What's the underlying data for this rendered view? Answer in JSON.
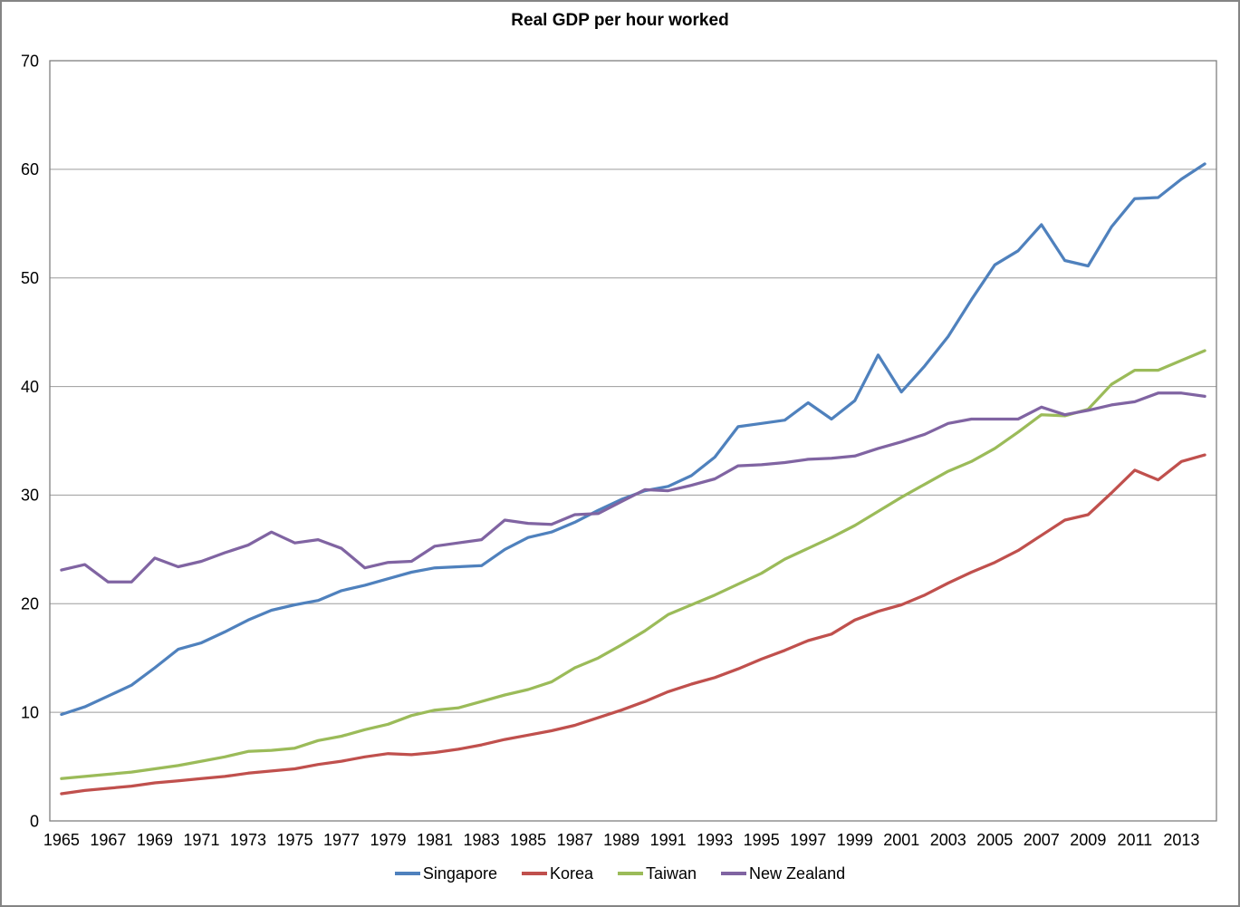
{
  "chart": {
    "title": "Real GDP per hour worked",
    "background_color": "#ffffff",
    "frame_border_color": "#848484",
    "plot_border_color": "#808080",
    "gridline_color": "#9c9c9c",
    "text_color": "#000000",
    "legend": [
      {
        "label": "Singapore",
        "color": "#4F81BD"
      },
      {
        "label": "Korea",
        "color": "#C0504D"
      },
      {
        "label": "Taiwan",
        "color": "#9BBB59"
      },
      {
        "label": "New Zealand",
        "color": "#8064A2"
      }
    ]
  },
  "chart_data": {
    "type": "line",
    "title": "Real GDP per hour worked",
    "xlabel": "",
    "ylabel": "",
    "grid": true,
    "legend_position": "bottom",
    "ylim": [
      0,
      70
    ],
    "y_ticks": [
      0,
      10,
      20,
      30,
      40,
      50,
      60,
      70
    ],
    "x": [
      1965,
      1966,
      1967,
      1968,
      1969,
      1970,
      1971,
      1972,
      1973,
      1974,
      1975,
      1976,
      1977,
      1978,
      1979,
      1980,
      1981,
      1982,
      1983,
      1984,
      1985,
      1986,
      1987,
      1988,
      1989,
      1990,
      1991,
      1992,
      1993,
      1994,
      1995,
      1996,
      1997,
      1998,
      1999,
      2000,
      2001,
      2002,
      2003,
      2004,
      2005,
      2006,
      2007,
      2008,
      2009,
      2010,
      2011,
      2012,
      2013,
      2014
    ],
    "x_tick_labels": [
      "1965",
      "1967",
      "1969",
      "1971",
      "1973",
      "1975",
      "1977",
      "1979",
      "1981",
      "1983",
      "1985",
      "1987",
      "1989",
      "1991",
      "1993",
      "1995",
      "1997",
      "1999",
      "2001",
      "2003",
      "2005",
      "2007",
      "2009",
      "2011",
      "2013"
    ],
    "series": [
      {
        "name": "Singapore",
        "color": "#4F81BD",
        "values": [
          9.8,
          10.5,
          11.5,
          12.5,
          14.1,
          15.8,
          16.4,
          17.4,
          18.5,
          19.4,
          19.9,
          20.3,
          21.2,
          21.7,
          22.3,
          22.9,
          23.3,
          23.4,
          23.5,
          25.0,
          26.1,
          26.6,
          27.5,
          28.6,
          29.6,
          30.4,
          30.8,
          31.8,
          33.5,
          36.3,
          36.6,
          36.9,
          38.5,
          37.0,
          38.7,
          42.9,
          39.5,
          41.9,
          44.6,
          48.0,
          51.2,
          52.5,
          54.9,
          51.6,
          51.1,
          54.7,
          57.3,
          57.4,
          59.1,
          60.5
        ]
      },
      {
        "name": "Korea",
        "color": "#C0504D",
        "values": [
          2.5,
          2.8,
          3.0,
          3.2,
          3.5,
          3.7,
          3.9,
          4.1,
          4.4,
          4.6,
          4.8,
          5.2,
          5.5,
          5.9,
          6.2,
          6.1,
          6.3,
          6.6,
          7.0,
          7.5,
          7.9,
          8.3,
          8.8,
          9.5,
          10.2,
          11.0,
          11.9,
          12.6,
          13.2,
          14.0,
          14.9,
          15.7,
          16.6,
          17.2,
          18.5,
          19.3,
          19.9,
          20.8,
          21.9,
          22.9,
          23.8,
          24.9,
          26.3,
          27.7,
          28.2,
          30.2,
          32.3,
          31.4,
          33.1,
          33.7
        ]
      },
      {
        "name": "Taiwan",
        "color": "#9BBB59",
        "values": [
          3.9,
          4.1,
          4.3,
          4.5,
          4.8,
          5.1,
          5.5,
          5.9,
          6.4,
          6.5,
          6.7,
          7.4,
          7.8,
          8.4,
          8.9,
          9.7,
          10.2,
          10.4,
          11.0,
          11.6,
          12.1,
          12.8,
          14.1,
          15.0,
          16.2,
          17.5,
          19.0,
          19.9,
          20.8,
          21.8,
          22.8,
          24.1,
          25.1,
          26.1,
          27.2,
          28.5,
          29.8,
          31.0,
          32.2,
          33.1,
          34.3,
          35.8,
          37.4,
          37.3,
          37.9,
          40.2,
          41.5,
          41.5,
          42.4,
          43.3
        ]
      },
      {
        "name": "New Zealand",
        "color": "#8064A2",
        "values": [
          23.1,
          23.6,
          22.0,
          22.0,
          24.2,
          23.4,
          23.9,
          24.7,
          25.4,
          26.6,
          25.6,
          25.9,
          25.1,
          23.3,
          23.8,
          23.9,
          25.3,
          25.6,
          25.9,
          27.7,
          27.4,
          27.3,
          28.2,
          28.3,
          29.4,
          30.5,
          30.4,
          30.9,
          31.5,
          32.7,
          32.8,
          33.0,
          33.3,
          33.4,
          33.6,
          34.3,
          34.9,
          35.6,
          36.6,
          37.0,
          37.0,
          37.0,
          38.1,
          37.4,
          37.8,
          38.3,
          38.6,
          39.4,
          39.4,
          39.1
        ]
      }
    ]
  }
}
